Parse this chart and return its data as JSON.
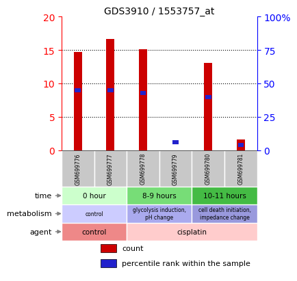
{
  "title": "GDS3910 / 1553757_at",
  "samples": [
    "GSM699776",
    "GSM699777",
    "GSM699778",
    "GSM699779",
    "GSM699780",
    "GSM699781"
  ],
  "count_values": [
    14.7,
    16.7,
    15.1,
    0.0,
    13.1,
    1.7
  ],
  "percentile_values": [
    45,
    45,
    43,
    6,
    40,
    4
  ],
  "ylim_left": [
    0,
    20
  ],
  "ylim_right": [
    0,
    100
  ],
  "yticks_left": [
    0,
    5,
    10,
    15,
    20
  ],
  "yticks_right": [
    0,
    25,
    50,
    75,
    100
  ],
  "ytick_labels_right": [
    "0",
    "25",
    "50",
    "75",
    "100%"
  ],
  "bar_color": "#cc0000",
  "percentile_color": "#2222cc",
  "time_groups": [
    {
      "label": "0 hour",
      "start": 0,
      "end": 2,
      "color": "#ccffcc"
    },
    {
      "label": "8-9 hours",
      "start": 2,
      "end": 4,
      "color": "#77dd77"
    },
    {
      "label": "10-11 hours",
      "start": 4,
      "end": 6,
      "color": "#44bb44"
    }
  ],
  "metabolism_groups": [
    {
      "label": "control",
      "start": 0,
      "end": 2,
      "color": "#ccccff"
    },
    {
      "label": "glycolysis induction,\npH change",
      "start": 2,
      "end": 4,
      "color": "#aaaaee"
    },
    {
      "label": "cell death initiation,\nimpedance change",
      "start": 4,
      "end": 6,
      "color": "#9999dd"
    }
  ],
  "agent_groups": [
    {
      "label": "control",
      "start": 0,
      "end": 2,
      "color": "#ee8888"
    },
    {
      "label": "cisplatin",
      "start": 2,
      "end": 6,
      "color": "#ffcccc"
    }
  ],
  "row_labels": [
    "time",
    "metabolism",
    "agent"
  ],
  "sample_bg": "#c8c8c8",
  "legend_count_color": "#cc0000",
  "legend_pct_color": "#2222cc"
}
